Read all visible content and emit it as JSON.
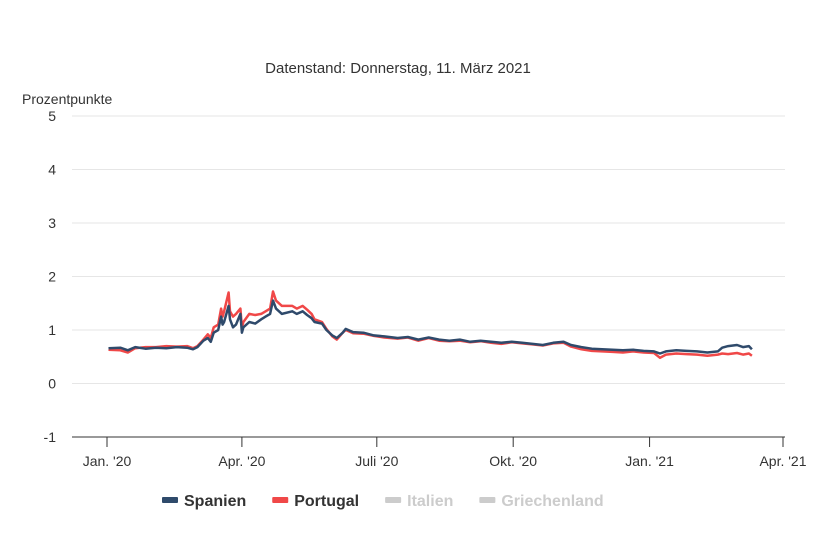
{
  "chart_data": {
    "type": "line",
    "subtitle": "Datenstand: Donnerstag, 11. März 2021",
    "ylabel": "Prozentpunkte",
    "ylim": [
      -1,
      5
    ],
    "yticks": [
      -1,
      0,
      1,
      2,
      3,
      4,
      5
    ],
    "xlim": [
      "2020-01-01",
      "2021-04-01"
    ],
    "xticks": [
      {
        "label": "Jan. '20",
        "date": "2020-01-01"
      },
      {
        "label": "Apr. '20",
        "date": "2020-04-01"
      },
      {
        "label": "Juli '20",
        "date": "2020-07-01"
      },
      {
        "label": "Okt. '20",
        "date": "2020-10-01"
      },
      {
        "label": "Jan. '21",
        "date": "2021-01-01"
      },
      {
        "label": "Apr. '21",
        "date": "2021-04-01"
      }
    ],
    "grid": true,
    "legend_position": "bottom",
    "series": [
      {
        "name": "Spanien",
        "color": "#2f4a6b",
        "visible": true,
        "points": [
          [
            "2020-01-02",
            0.66
          ],
          [
            "2020-01-10",
            0.67
          ],
          [
            "2020-01-15",
            0.62
          ],
          [
            "2020-01-20",
            0.68
          ],
          [
            "2020-01-27",
            0.65
          ],
          [
            "2020-02-03",
            0.67
          ],
          [
            "2020-02-10",
            0.66
          ],
          [
            "2020-02-17",
            0.68
          ],
          [
            "2020-02-24",
            0.67
          ],
          [
            "2020-02-28",
            0.64
          ],
          [
            "2020-03-02",
            0.68
          ],
          [
            "2020-03-06",
            0.8
          ],
          [
            "2020-03-09",
            0.85
          ],
          [
            "2020-03-11",
            0.78
          ],
          [
            "2020-03-13",
            0.95
          ],
          [
            "2020-03-16",
            1.0
          ],
          [
            "2020-03-18",
            1.25
          ],
          [
            "2020-03-19",
            1.1
          ],
          [
            "2020-03-20",
            1.15
          ],
          [
            "2020-03-23",
            1.45
          ],
          [
            "2020-03-24",
            1.2
          ],
          [
            "2020-03-26",
            1.05
          ],
          [
            "2020-03-28",
            1.1
          ],
          [
            "2020-03-31",
            1.3
          ],
          [
            "2020-04-01",
            0.95
          ],
          [
            "2020-04-02",
            1.05
          ],
          [
            "2020-04-06",
            1.15
          ],
          [
            "2020-04-10",
            1.12
          ],
          [
            "2020-04-14",
            1.2
          ],
          [
            "2020-04-17",
            1.25
          ],
          [
            "2020-04-20",
            1.3
          ],
          [
            "2020-04-22",
            1.55
          ],
          [
            "2020-04-24",
            1.4
          ],
          [
            "2020-04-28",
            1.3
          ],
          [
            "2020-05-05",
            1.35
          ],
          [
            "2020-05-08",
            1.3
          ],
          [
            "2020-05-12",
            1.35
          ],
          [
            "2020-05-15",
            1.28
          ],
          [
            "2020-05-18",
            1.22
          ],
          [
            "2020-05-20",
            1.15
          ],
          [
            "2020-05-25",
            1.12
          ],
          [
            "2020-05-28",
            1.0
          ],
          [
            "2020-06-01",
            0.9
          ],
          [
            "2020-06-04",
            0.85
          ],
          [
            "2020-06-08",
            0.95
          ],
          [
            "2020-06-10",
            1.02
          ],
          [
            "2020-06-15",
            0.96
          ],
          [
            "2020-06-22",
            0.95
          ],
          [
            "2020-06-29",
            0.9
          ],
          [
            "2020-07-06",
            0.88
          ],
          [
            "2020-07-15",
            0.85
          ],
          [
            "2020-07-22",
            0.87
          ],
          [
            "2020-07-29",
            0.82
          ],
          [
            "2020-08-05",
            0.86
          ],
          [
            "2020-08-12",
            0.82
          ],
          [
            "2020-08-19",
            0.8
          ],
          [
            "2020-08-26",
            0.82
          ],
          [
            "2020-09-02",
            0.78
          ],
          [
            "2020-09-09",
            0.8
          ],
          [
            "2020-09-16",
            0.78
          ],
          [
            "2020-09-23",
            0.76
          ],
          [
            "2020-09-30",
            0.78
          ],
          [
            "2020-10-07",
            0.76
          ],
          [
            "2020-10-14",
            0.74
          ],
          [
            "2020-10-21",
            0.72
          ],
          [
            "2020-10-28",
            0.76
          ],
          [
            "2020-11-04",
            0.78
          ],
          [
            "2020-11-09",
            0.72
          ],
          [
            "2020-11-16",
            0.68
          ],
          [
            "2020-11-23",
            0.65
          ],
          [
            "2020-11-30",
            0.64
          ],
          [
            "2020-12-07",
            0.63
          ],
          [
            "2020-12-14",
            0.62
          ],
          [
            "2020-12-21",
            0.63
          ],
          [
            "2020-12-28",
            0.61
          ],
          [
            "2021-01-04",
            0.6
          ],
          [
            "2021-01-08",
            0.56
          ],
          [
            "2021-01-12",
            0.6
          ],
          [
            "2021-01-19",
            0.62
          ],
          [
            "2021-01-26",
            0.61
          ],
          [
            "2021-02-02",
            0.6
          ],
          [
            "2021-02-09",
            0.58
          ],
          [
            "2021-02-16",
            0.6
          ],
          [
            "2021-02-19",
            0.67
          ],
          [
            "2021-02-23",
            0.7
          ],
          [
            "2021-03-01",
            0.72
          ],
          [
            "2021-03-05",
            0.68
          ],
          [
            "2021-03-09",
            0.7
          ],
          [
            "2021-03-11",
            0.64
          ]
        ]
      },
      {
        "name": "Portugal",
        "color": "#f04848",
        "visible": true,
        "points": [
          [
            "2020-01-02",
            0.63
          ],
          [
            "2020-01-10",
            0.62
          ],
          [
            "2020-01-15",
            0.58
          ],
          [
            "2020-01-20",
            0.66
          ],
          [
            "2020-01-27",
            0.68
          ],
          [
            "2020-02-03",
            0.68
          ],
          [
            "2020-02-10",
            0.7
          ],
          [
            "2020-02-17",
            0.69
          ],
          [
            "2020-02-24",
            0.7
          ],
          [
            "2020-02-28",
            0.66
          ],
          [
            "2020-03-02",
            0.7
          ],
          [
            "2020-03-06",
            0.82
          ],
          [
            "2020-03-09",
            0.92
          ],
          [
            "2020-03-11",
            0.85
          ],
          [
            "2020-03-13",
            1.05
          ],
          [
            "2020-03-16",
            1.1
          ],
          [
            "2020-03-18",
            1.4
          ],
          [
            "2020-03-19",
            1.25
          ],
          [
            "2020-03-20",
            1.35
          ],
          [
            "2020-03-23",
            1.7
          ],
          [
            "2020-03-24",
            1.35
          ],
          [
            "2020-03-26",
            1.25
          ],
          [
            "2020-03-28",
            1.3
          ],
          [
            "2020-03-31",
            1.4
          ],
          [
            "2020-04-01",
            1.05
          ],
          [
            "2020-04-02",
            1.15
          ],
          [
            "2020-04-06",
            1.3
          ],
          [
            "2020-04-10",
            1.28
          ],
          [
            "2020-04-14",
            1.3
          ],
          [
            "2020-04-17",
            1.35
          ],
          [
            "2020-04-20",
            1.4
          ],
          [
            "2020-04-22",
            1.72
          ],
          [
            "2020-04-24",
            1.55
          ],
          [
            "2020-04-28",
            1.45
          ],
          [
            "2020-05-05",
            1.45
          ],
          [
            "2020-05-08",
            1.4
          ],
          [
            "2020-05-12",
            1.45
          ],
          [
            "2020-05-15",
            1.38
          ],
          [
            "2020-05-18",
            1.3
          ],
          [
            "2020-05-20",
            1.2
          ],
          [
            "2020-05-25",
            1.15
          ],
          [
            "2020-05-28",
            1.02
          ],
          [
            "2020-06-01",
            0.88
          ],
          [
            "2020-06-04",
            0.82
          ],
          [
            "2020-06-08",
            0.95
          ],
          [
            "2020-06-10",
            1.0
          ],
          [
            "2020-06-15",
            0.94
          ],
          [
            "2020-06-22",
            0.93
          ],
          [
            "2020-06-29",
            0.89
          ],
          [
            "2020-07-06",
            0.86
          ],
          [
            "2020-07-15",
            0.84
          ],
          [
            "2020-07-22",
            0.86
          ],
          [
            "2020-07-29",
            0.8
          ],
          [
            "2020-08-05",
            0.85
          ],
          [
            "2020-08-12",
            0.8
          ],
          [
            "2020-08-19",
            0.79
          ],
          [
            "2020-08-26",
            0.8
          ],
          [
            "2020-09-02",
            0.77
          ],
          [
            "2020-09-09",
            0.79
          ],
          [
            "2020-09-16",
            0.76
          ],
          [
            "2020-09-23",
            0.74
          ],
          [
            "2020-09-30",
            0.77
          ],
          [
            "2020-10-07",
            0.75
          ],
          [
            "2020-10-14",
            0.73
          ],
          [
            "2020-10-21",
            0.71
          ],
          [
            "2020-10-28",
            0.75
          ],
          [
            "2020-11-04",
            0.76
          ],
          [
            "2020-11-09",
            0.69
          ],
          [
            "2020-11-16",
            0.64
          ],
          [
            "2020-11-23",
            0.61
          ],
          [
            "2020-11-30",
            0.6
          ],
          [
            "2020-12-07",
            0.59
          ],
          [
            "2020-12-14",
            0.58
          ],
          [
            "2020-12-21",
            0.6
          ],
          [
            "2020-12-28",
            0.58
          ],
          [
            "2021-01-04",
            0.57
          ],
          [
            "2021-01-08",
            0.48
          ],
          [
            "2021-01-12",
            0.54
          ],
          [
            "2021-01-19",
            0.56
          ],
          [
            "2021-01-26",
            0.55
          ],
          [
            "2021-02-02",
            0.54
          ],
          [
            "2021-02-09",
            0.52
          ],
          [
            "2021-02-16",
            0.54
          ],
          [
            "2021-02-19",
            0.56
          ],
          [
            "2021-02-23",
            0.55
          ],
          [
            "2021-03-01",
            0.57
          ],
          [
            "2021-03-05",
            0.54
          ],
          [
            "2021-03-09",
            0.56
          ],
          [
            "2021-03-11",
            0.52
          ]
        ]
      },
      {
        "name": "Italien",
        "color": "#cccccc",
        "visible": false,
        "points": []
      },
      {
        "name": "Griechenland",
        "color": "#cccccc",
        "visible": false,
        "points": []
      }
    ]
  }
}
